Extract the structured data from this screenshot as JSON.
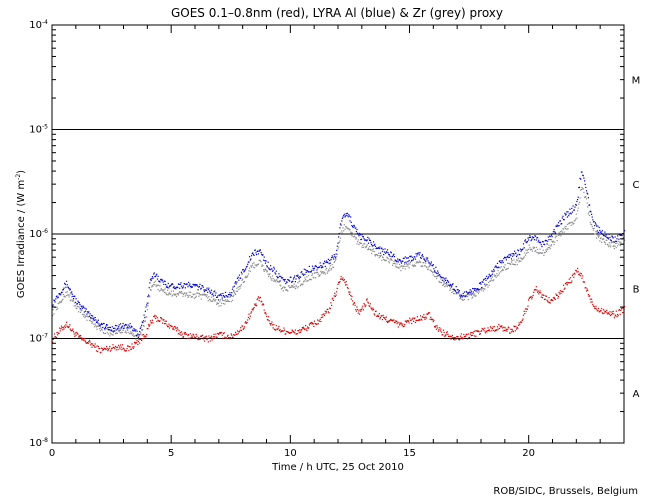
{
  "chart_data": {
    "type": "scatter",
    "title": "GOES 0.1–0.8nm (red), LYRA Al (blue) & Zr (grey) proxy",
    "xlabel": "Time / h UTC, 25 Oct 2010",
    "ylabel_main": "GOES Irradiance / (W m",
    "ylabel_sup": "-2",
    "ylabel_end": ")",
    "credit": "ROB/SIDC, Brussels, Belgium",
    "xlim": [
      0,
      24
    ],
    "ylim": [
      1e-08,
      0.0001
    ],
    "y_scale": "log",
    "grid": false,
    "x_ticks": [
      0,
      5,
      10,
      15,
      20
    ],
    "x_tick_labels": [
      "0",
      "5",
      "10",
      "15",
      "20"
    ],
    "y_ticks": [
      {
        "value": 1e-08,
        "mantissa": "10",
        "exponent": "-8"
      },
      {
        "value": 1e-07,
        "mantissa": "10",
        "exponent": "-7"
      },
      {
        "value": 1e-06,
        "mantissa": "10",
        "exponent": "-6"
      },
      {
        "value": 1e-05,
        "mantissa": "10",
        "exponent": "-5"
      },
      {
        "value": 0.0001,
        "mantissa": "10",
        "exponent": "-4"
      }
    ],
    "reference_lines": [
      1e-07,
      1e-06,
      1e-05
    ],
    "flare_classes": [
      {
        "label": "A",
        "value": 3e-08
      },
      {
        "label": "B",
        "value": 3e-07
      },
      {
        "label": "C",
        "value": 3e-06
      },
      {
        "label": "M",
        "value": 3e-05
      }
    ],
    "series": [
      {
        "key": "goes",
        "color": "#d40000",
        "x": [
          0.0,
          0.3,
          0.6,
          0.9,
          1.2,
          1.6,
          2.0,
          2.4,
          2.8,
          3.2,
          3.6,
          3.9,
          4.1,
          4.3,
          4.6,
          5.0,
          5.5,
          6.0,
          6.5,
          7.0,
          7.5,
          8.0,
          8.4,
          8.7,
          9.0,
          9.3,
          9.7,
          10.2,
          10.7,
          11.2,
          11.6,
          11.9,
          12.1,
          12.3,
          12.5,
          12.7,
          12.9,
          13.2,
          13.5,
          13.8,
          14.2,
          14.6,
          15.0,
          15.4,
          15.8,
          16.1,
          16.4,
          16.8,
          17.2,
          17.6,
          18.0,
          18.4,
          18.8,
          19.2,
          19.6,
          20.0,
          20.3,
          20.6,
          20.9,
          21.2,
          21.5,
          21.8,
          22.0,
          22.2,
          22.4,
          22.6,
          22.8,
          23.0,
          23.3,
          23.6,
          23.9,
          24.0
        ],
        "y": [
          1e-07,
          1.2e-07,
          1.4e-07,
          1.15e-07,
          1e-07,
          9e-08,
          7.8e-08,
          8.2e-08,
          8.5e-08,
          8e-08,
          9.5e-08,
          1.1e-07,
          1.4e-07,
          1.6e-07,
          1.5e-07,
          1.3e-07,
          1.1e-07,
          1.05e-07,
          1e-07,
          1.1e-07,
          1.05e-07,
          1.3e-07,
          1.9e-07,
          2.5e-07,
          1.6e-07,
          1.3e-07,
          1.2e-07,
          1.15e-07,
          1.3e-07,
          1.5e-07,
          1.9e-07,
          2.8e-07,
          4e-07,
          3.5e-07,
          2.6e-07,
          2e-07,
          1.8e-07,
          2.3e-07,
          1.8e-07,
          1.6e-07,
          1.5e-07,
          1.35e-07,
          1.5e-07,
          1.55e-07,
          1.7e-07,
          1.3e-07,
          1.15e-07,
          1.05e-07,
          1.05e-07,
          1.1e-07,
          1.2e-07,
          1.25e-07,
          1.3e-07,
          1.2e-07,
          1.35e-07,
          2.3e-07,
          3e-07,
          2.5e-07,
          2.3e-07,
          2.6e-07,
          3.2e-07,
          3.8e-07,
          4.5e-07,
          4e-07,
          3e-07,
          2.3e-07,
          2e-07,
          1.9e-07,
          1.8e-07,
          1.7e-07,
          1.9e-07,
          2e-07
        ]
      },
      {
        "key": "lyra_al",
        "color": "#0000d0",
        "x": [
          0.0,
          0.3,
          0.6,
          0.9,
          1.2,
          1.6,
          2.0,
          2.4,
          2.8,
          3.2,
          3.6,
          3.9,
          4.1,
          4.3,
          4.6,
          5.0,
          5.5,
          6.0,
          6.5,
          7.0,
          7.5,
          8.0,
          8.4,
          8.7,
          9.0,
          9.3,
          9.7,
          10.2,
          10.7,
          11.2,
          11.6,
          11.9,
          12.1,
          12.3,
          12.5,
          12.7,
          12.9,
          13.2,
          13.5,
          13.8,
          14.2,
          14.6,
          15.0,
          15.4,
          15.8,
          16.1,
          16.4,
          16.8,
          17.2,
          17.6,
          18.0,
          18.4,
          18.8,
          19.2,
          19.6,
          20.0,
          20.3,
          20.6,
          20.9,
          21.2,
          21.5,
          21.8,
          22.0,
          22.2,
          22.4,
          22.6,
          22.8,
          23.0,
          23.3,
          23.6,
          23.9,
          24.0
        ],
        "y": [
          2.2e-07,
          2.8e-07,
          3.4e-07,
          2.5e-07,
          2e-07,
          1.7e-07,
          1.4e-07,
          1.25e-07,
          1.3e-07,
          1.35e-07,
          1.1e-07,
          1.8e-07,
          3.5e-07,
          4.2e-07,
          3.5e-07,
          3.2e-07,
          3.3e-07,
          3.2e-07,
          3e-07,
          2.5e-07,
          2.8e-07,
          4.5e-07,
          6.5e-07,
          7e-07,
          5.2e-07,
          4.5e-07,
          3.5e-07,
          3.8e-07,
          4.6e-07,
          5e-07,
          5.5e-07,
          6.5e-07,
          1.3e-06,
          1.6e-06,
          1.4e-06,
          1.1e-06,
          9.5e-07,
          9e-07,
          8e-07,
          7e-07,
          6.5e-07,
          5.5e-07,
          6e-07,
          6.3e-07,
          5.5e-07,
          4.5e-07,
          3.8e-07,
          3.2e-07,
          2.6e-07,
          2.9e-07,
          3.3e-07,
          4.2e-07,
          5.5e-07,
          6.2e-07,
          6.8e-07,
          9.5e-07,
          9e-07,
          8e-07,
          9.5e-07,
          1.2e-06,
          1.5e-06,
          1.7e-06,
          2e-06,
          4.2e-06,
          2.8e-06,
          1.5e-06,
          1.2e-06,
          1.05e-06,
          9.5e-07,
          9e-07,
          1e-06,
          1.1e-06
        ]
      },
      {
        "key": "lyra_zr",
        "color": "#8a8a8a",
        "x": [
          0.0,
          0.3,
          0.6,
          0.9,
          1.2,
          1.6,
          2.0,
          2.4,
          2.8,
          3.2,
          3.6,
          3.9,
          4.1,
          4.3,
          4.6,
          5.0,
          5.5,
          6.0,
          6.5,
          7.0,
          7.5,
          8.0,
          8.4,
          8.7,
          9.0,
          9.3,
          9.7,
          10.2,
          10.7,
          11.2,
          11.6,
          11.9,
          12.1,
          12.3,
          12.5,
          12.7,
          12.9,
          13.2,
          13.5,
          13.8,
          14.2,
          14.6,
          15.0,
          15.4,
          15.8,
          16.1,
          16.4,
          16.8,
          17.2,
          17.6,
          18.0,
          18.4,
          18.8,
          19.2,
          19.6,
          20.0,
          20.3,
          20.6,
          20.9,
          21.2,
          21.5,
          21.8,
          22.0,
          22.2,
          22.4,
          22.6,
          22.8,
          23.0,
          23.3,
          23.6,
          23.9,
          24.0
        ],
        "y": [
          1.8e-07,
          2.2e-07,
          2.8e-07,
          2.2e-07,
          1.8e-07,
          1.5e-07,
          1.25e-07,
          1.15e-07,
          1.2e-07,
          1.2e-07,
          1e-07,
          1.5e-07,
          2.8e-07,
          3.4e-07,
          2.9e-07,
          2.7e-07,
          2.7e-07,
          2.6e-07,
          2.5e-07,
          2.2e-07,
          2.4e-07,
          3.6e-07,
          5e-07,
          5.5e-07,
          4.2e-07,
          3.7e-07,
          3e-07,
          3.2e-07,
          3.8e-07,
          4.2e-07,
          4.6e-07,
          5.5e-07,
          1e-06,
          1.25e-06,
          1.1e-06,
          9e-07,
          8e-07,
          7.5e-07,
          6.8e-07,
          6e-07,
          5.5e-07,
          4.8e-07,
          5.2e-07,
          5.4e-07,
          4.8e-07,
          4e-07,
          3.4e-07,
          2.9e-07,
          2.4e-07,
          2.6e-07,
          2.9e-07,
          3.6e-07,
          4.6e-07,
          5.2e-07,
          5.6e-07,
          7.5e-07,
          7.2e-07,
          6.6e-07,
          7.8e-07,
          9.5e-07,
          1.15e-06,
          1.3e-06,
          1.5e-06,
          3e-06,
          2.1e-06,
          1.2e-06,
          1e-06,
          9e-07,
          8.2e-07,
          7.8e-07,
          8.5e-07,
          9.2e-07
        ]
      }
    ]
  }
}
